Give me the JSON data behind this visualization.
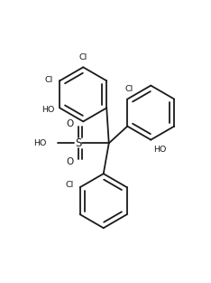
{
  "background_color": "#ffffff",
  "line_color": "#1a1a1a",
  "lw": 1.3,
  "figsize": [
    2.34,
    3.13
  ],
  "dpi": 100,
  "xlim": [
    -1.6,
    1.5
  ],
  "ylim": [
    -1.55,
    1.6
  ]
}
